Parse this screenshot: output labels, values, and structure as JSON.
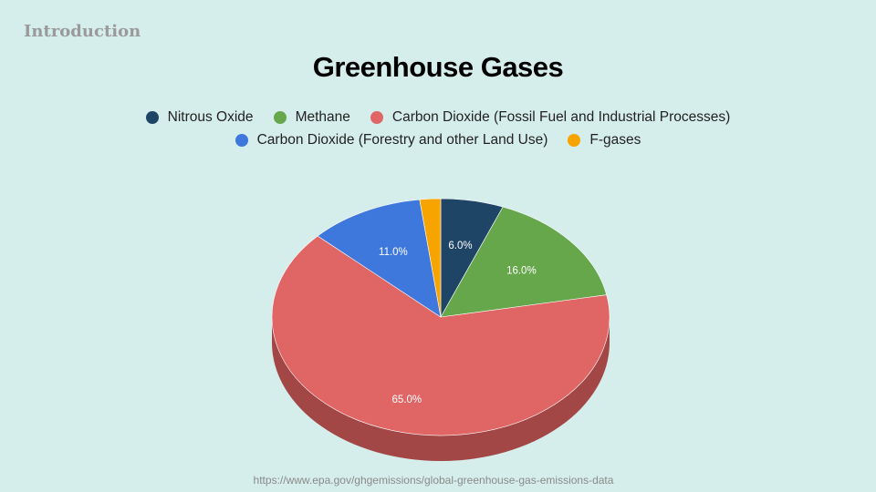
{
  "section_label": "Introduction",
  "source_text": "https://www.epa.gov/ghgemissions/global-greenhouse-gas-emissions-data",
  "chart_data": {
    "type": "pie",
    "title": "Greenhouse Gases",
    "legend_position": "top",
    "slices": [
      {
        "label": "Nitrous Oxide",
        "value": 6.0,
        "display": "6.0%",
        "color": "#1e4466",
        "shadow": "#15304a"
      },
      {
        "label": "Methane",
        "value": 16.0,
        "display": "16.0%",
        "color": "#67a74c",
        "shadow": "#4a7a36"
      },
      {
        "label": "Carbon Dioxide (Fossil Fuel and Industrial Processes)",
        "value": 65.0,
        "display": "65.0%",
        "color": "#e06565",
        "shadow": "#a34646"
      },
      {
        "label": "Carbon Dioxide (Forestry and other Land Use)",
        "value": 11.0,
        "display": "11.0%",
        "color": "#3f78dc",
        "shadow": "#2c569e"
      },
      {
        "label": "F-gases",
        "value": 2.0,
        "display": "",
        "color": "#f7a300",
        "shadow": "#b57800"
      }
    ],
    "legend_rows": [
      [
        0,
        1,
        2
      ],
      [
        3,
        4
      ]
    ]
  }
}
